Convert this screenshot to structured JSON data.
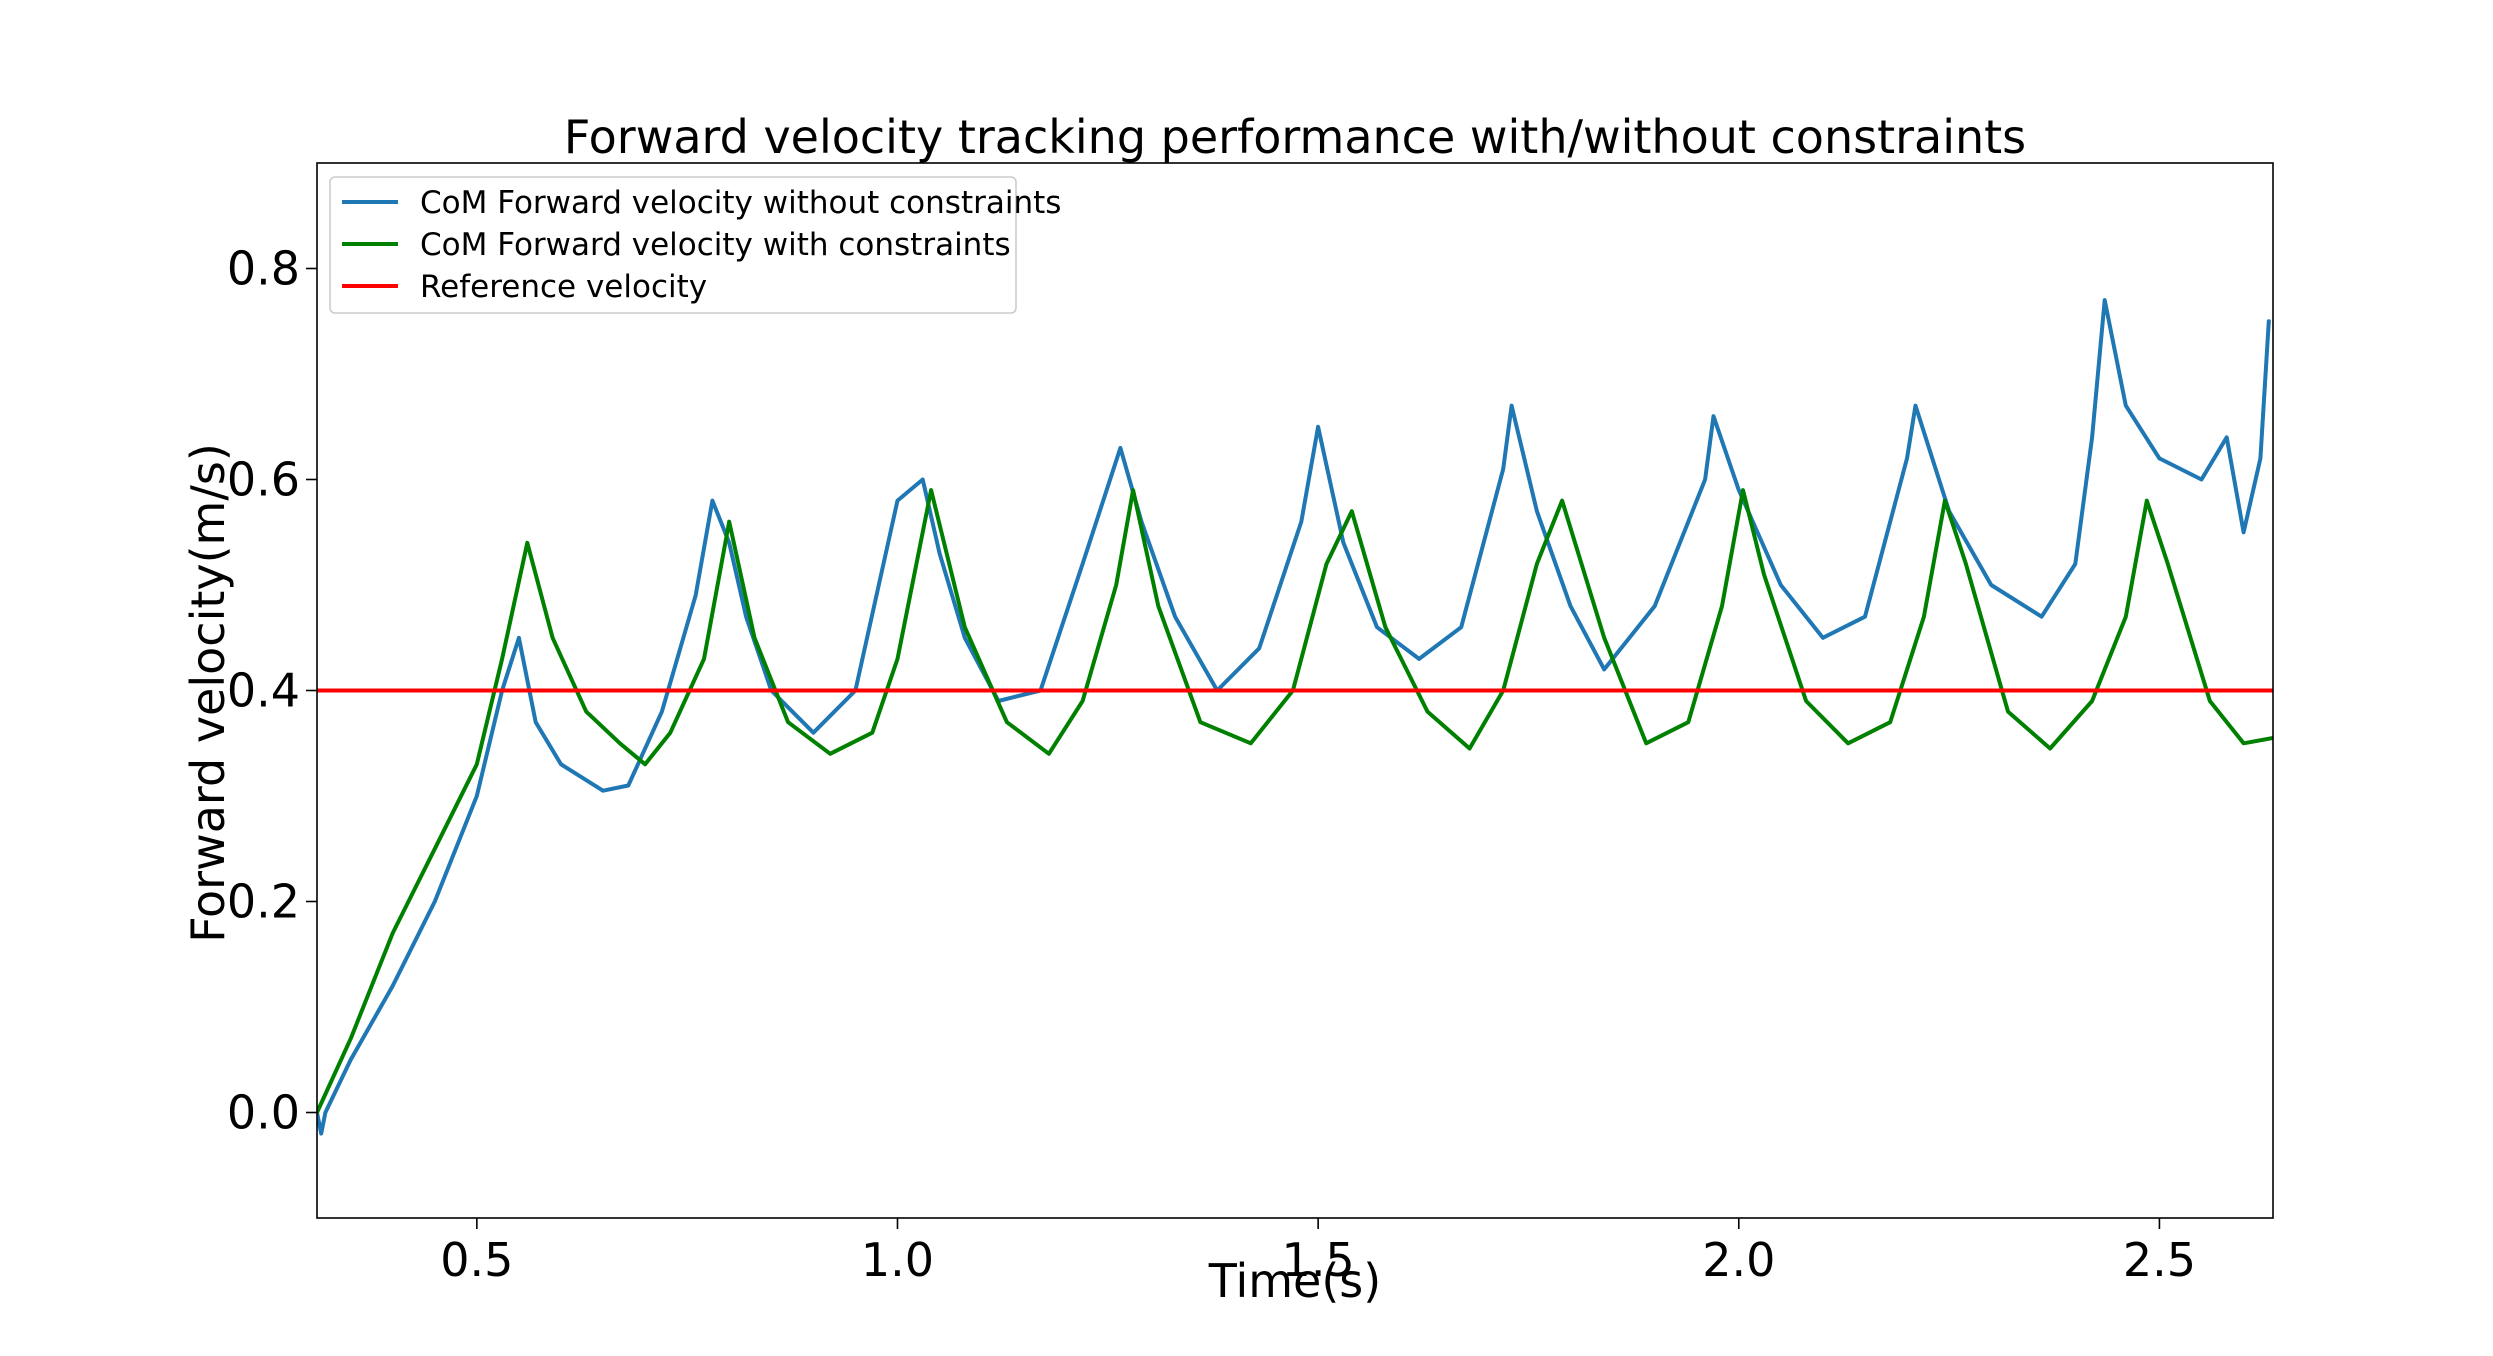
{
  "chart_data": {
    "type": "line",
    "title": "Forward velocity tracking performance with/without constraints",
    "xlabel": "Time(s)",
    "ylabel": "Forward velocity(m/s)",
    "xlim": [
      0.31,
      2.635
    ],
    "ylim": [
      -0.1,
      0.9
    ],
    "xticks": [
      0.5,
      1.0,
      1.5,
      2.0,
      2.5
    ],
    "xtick_labels": [
      "0.5",
      "1.0",
      "1.5",
      "2.0",
      "2.5"
    ],
    "yticks": [
      0.0,
      0.2,
      0.4,
      0.6,
      0.8
    ],
    "ytick_labels": [
      "0.0",
      "0.2",
      "0.4",
      "0.6",
      "0.8"
    ],
    "grid": false,
    "legend_position": "top-left",
    "series": [
      {
        "name": "CoM Forward velocity without constraints",
        "color": "#1f77b4",
        "x": [
          0.31,
          0.315,
          0.32,
          0.35,
          0.4,
          0.45,
          0.5,
          0.53,
          0.55,
          0.57,
          0.6,
          0.65,
          0.68,
          0.72,
          0.76,
          0.78,
          0.8,
          0.82,
          0.85,
          0.9,
          0.95,
          1.0,
          1.03,
          1.05,
          1.08,
          1.12,
          1.17,
          1.22,
          1.265,
          1.29,
          1.33,
          1.38,
          1.43,
          1.48,
          1.5,
          1.53,
          1.57,
          1.62,
          1.67,
          1.72,
          1.73,
          1.76,
          1.8,
          1.84,
          1.9,
          1.96,
          1.97,
          2.0,
          2.05,
          2.1,
          2.15,
          2.2,
          2.21,
          2.25,
          2.3,
          2.36,
          2.4,
          2.42,
          2.435,
          2.46,
          2.5,
          2.55,
          2.58,
          2.6,
          2.62,
          2.63
        ],
        "y": [
          0.0,
          -0.02,
          0.0,
          0.05,
          0.12,
          0.2,
          0.3,
          0.4,
          0.45,
          0.37,
          0.33,
          0.305,
          0.31,
          0.38,
          0.49,
          0.58,
          0.54,
          0.47,
          0.4,
          0.36,
          0.4,
          0.58,
          0.6,
          0.53,
          0.45,
          0.39,
          0.4,
          0.52,
          0.63,
          0.56,
          0.47,
          0.4,
          0.44,
          0.56,
          0.65,
          0.54,
          0.46,
          0.43,
          0.46,
          0.61,
          0.67,
          0.57,
          0.48,
          0.42,
          0.48,
          0.6,
          0.66,
          0.59,
          0.5,
          0.45,
          0.47,
          0.62,
          0.67,
          0.57,
          0.5,
          0.47,
          0.52,
          0.64,
          0.77,
          0.67,
          0.62,
          0.6,
          0.64,
          0.55,
          0.62,
          0.75
        ]
      },
      {
        "name": "CoM Forward velocity with constraints",
        "color": "#008000",
        "x": [
          0.31,
          0.35,
          0.4,
          0.45,
          0.5,
          0.53,
          0.56,
          0.59,
          0.63,
          0.67,
          0.7,
          0.73,
          0.77,
          0.8,
          0.83,
          0.87,
          0.92,
          0.97,
          1.0,
          1.04,
          1.08,
          1.13,
          1.18,
          1.22,
          1.26,
          1.28,
          1.31,
          1.36,
          1.42,
          1.47,
          1.51,
          1.54,
          1.58,
          1.63,
          1.68,
          1.72,
          1.76,
          1.79,
          1.84,
          1.89,
          1.94,
          1.98,
          2.005,
          2.03,
          2.08,
          2.13,
          2.18,
          2.22,
          2.245,
          2.27,
          2.32,
          2.37,
          2.42,
          2.46,
          2.485,
          2.51,
          2.56,
          2.6,
          2.635
        ],
        "y": [
          0.0,
          0.07,
          0.17,
          0.25,
          0.33,
          0.43,
          0.54,
          0.45,
          0.38,
          0.35,
          0.33,
          0.36,
          0.43,
          0.56,
          0.45,
          0.37,
          0.34,
          0.36,
          0.43,
          0.59,
          0.46,
          0.37,
          0.34,
          0.39,
          0.5,
          0.59,
          0.48,
          0.37,
          0.35,
          0.4,
          0.52,
          0.57,
          0.46,
          0.38,
          0.345,
          0.4,
          0.52,
          0.58,
          0.45,
          0.35,
          0.37,
          0.48,
          0.59,
          0.51,
          0.39,
          0.35,
          0.37,
          0.47,
          0.58,
          0.52,
          0.38,
          0.345,
          0.39,
          0.47,
          0.58,
          0.52,
          0.39,
          0.35,
          0.355
        ]
      },
      {
        "name": "Reference velocity",
        "color": "#ff0000",
        "x": [
          0.31,
          2.635
        ],
        "y": [
          0.4,
          0.4
        ]
      }
    ]
  }
}
